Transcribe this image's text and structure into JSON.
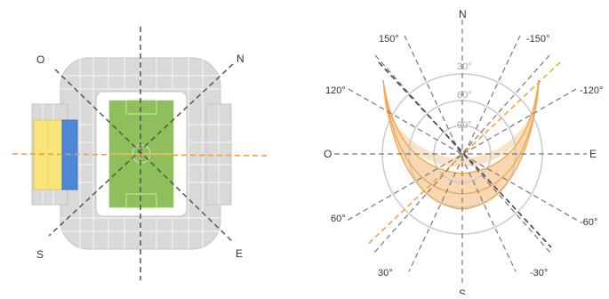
{
  "stadium": {
    "labels": {
      "north": "N",
      "east": "E",
      "south": "S",
      "west": "O"
    },
    "colors": {
      "stands": "#dcdcdc",
      "pitch": "#8fbf5a",
      "highlight_yellow": "#f7e57a",
      "highlight_blue": "#4f86d6",
      "axis_orange": "#f0a030",
      "axis_dark": "#555555"
    }
  },
  "sunpath": {
    "compass": {
      "north": "N",
      "east": "E",
      "south": "S",
      "west": "O"
    },
    "angle_labels": {
      "a150": "150°",
      "am150": "-150°",
      "a120": "120°",
      "am120": "-120°",
      "a60": "60°",
      "am60": "-60°",
      "a30": "30°",
      "am30": "-30°"
    },
    "ring_labels": {
      "r30": "30°",
      "r60": "60°",
      "r90": "90°"
    },
    "colors": {
      "band": "#fbe1c6",
      "band_edge": "#f0a64a",
      "ring": "#c9c9c9",
      "axis": "#666666",
      "orange_axis": "#f0a030"
    }
  }
}
